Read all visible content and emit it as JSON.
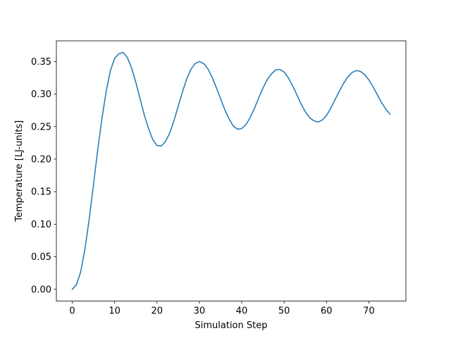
{
  "chart_data": {
    "type": "line",
    "title": "",
    "xlabel": "Simulation Step",
    "ylabel": "Temperature [LJ-units]",
    "xlim": [
      -3.75,
      78.75
    ],
    "ylim": [
      -0.0182,
      0.3818
    ],
    "xticks": [
      0,
      10,
      20,
      30,
      40,
      50,
      60,
      70
    ],
    "yticks": [
      0.0,
      0.05,
      0.1,
      0.15,
      0.2,
      0.25,
      0.3,
      0.35
    ],
    "ytick_labels": [
      "0.00",
      "0.05",
      "0.10",
      "0.15",
      "0.20",
      "0.25",
      "0.30",
      "0.35"
    ],
    "grid": false,
    "legend": false,
    "line_color": "#1f77b4",
    "series": [
      {
        "x": [
          0,
          1,
          2,
          3,
          4,
          5,
          6,
          7,
          8,
          9,
          10,
          11,
          12,
          13,
          14,
          15,
          16,
          17,
          18,
          19,
          20,
          21,
          22,
          23,
          24,
          25,
          26,
          27,
          28,
          29,
          30,
          31,
          32,
          33,
          34,
          35,
          36,
          37,
          38,
          39,
          40,
          41,
          42,
          43,
          44,
          45,
          46,
          47,
          48,
          49,
          50,
          51,
          52,
          53,
          54,
          55,
          56,
          57,
          58,
          59,
          60,
          61,
          62,
          63,
          64,
          65,
          66,
          67,
          68,
          69,
          70,
          71,
          72,
          73,
          74,
          75
        ],
        "values": [
          0.0,
          0.007,
          0.027,
          0.062,
          0.108,
          0.16,
          0.214,
          0.262,
          0.304,
          0.336,
          0.355,
          0.362,
          0.364,
          0.356,
          0.34,
          0.318,
          0.293,
          0.268,
          0.247,
          0.23,
          0.221,
          0.22,
          0.227,
          0.24,
          0.259,
          0.281,
          0.303,
          0.323,
          0.338,
          0.347,
          0.35,
          0.347,
          0.339,
          0.326,
          0.31,
          0.293,
          0.276,
          0.262,
          0.251,
          0.246,
          0.247,
          0.253,
          0.264,
          0.278,
          0.294,
          0.309,
          0.322,
          0.331,
          0.337,
          0.338,
          0.334,
          0.325,
          0.313,
          0.299,
          0.285,
          0.273,
          0.264,
          0.259,
          0.257,
          0.26,
          0.267,
          0.278,
          0.291,
          0.304,
          0.316,
          0.326,
          0.333,
          0.336,
          0.335,
          0.33,
          0.322,
          0.311,
          0.299,
          0.287,
          0.277,
          0.269
        ]
      }
    ]
  }
}
